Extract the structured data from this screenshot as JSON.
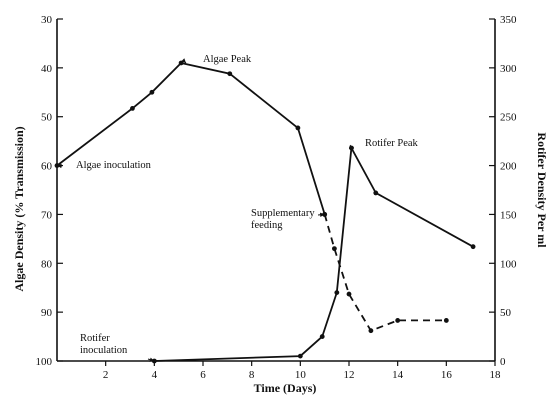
{
  "chart_data": {
    "type": "line",
    "xlabel": "Time (Days)",
    "ylabel_left": "Algae Density (% Transmission)",
    "ylabel_right": "Rotifer Density Per ml",
    "xlim": [
      0,
      18
    ],
    "ylim_left": [
      30,
      100
    ],
    "ylim_left_inverted": true,
    "ylim_right": [
      0,
      350
    ],
    "x_ticks": [
      2,
      4,
      6,
      8,
      10,
      12,
      14,
      16,
      18
    ],
    "y_left_ticks": [
      30,
      40,
      50,
      60,
      70,
      80,
      90,
      100
    ],
    "y_right_ticks": [
      0,
      50,
      100,
      150,
      200,
      250,
      300,
      350
    ],
    "grid": false,
    "legend": "none",
    "series": [
      {
        "axis": "left",
        "style": "solid",
        "points": [
          [
            0,
            60
          ],
          [
            3.1,
            48.3
          ],
          [
            3.9,
            45
          ],
          [
            5.1,
            39
          ],
          [
            7.1,
            41.2
          ],
          [
            9.9,
            52.3
          ],
          [
            11,
            70
          ]
        ]
      },
      {
        "axis": "left",
        "style": "dashed",
        "points": [
          [
            11,
            70
          ],
          [
            11.4,
            77
          ],
          [
            12,
            86.3
          ],
          [
            12.9,
            93.8
          ],
          [
            14,
            91.7
          ],
          [
            16,
            91.7
          ]
        ]
      },
      {
        "axis": "right",
        "style": "solid",
        "points": [
          [
            4,
            0
          ],
          [
            10,
            5
          ],
          [
            10.9,
            25
          ],
          [
            11.5,
            70
          ],
          [
            12.1,
            218
          ],
          [
            13.1,
            172
          ],
          [
            17.1,
            117
          ]
        ]
      }
    ],
    "annotations": [
      {
        "lines": [
          "Algae inoculation"
        ],
        "x": 0,
        "y": 60,
        "axis": "left"
      },
      {
        "lines": [
          "Algae Peak"
        ],
        "x": 5.3,
        "y": 39,
        "axis": "left"
      },
      {
        "lines": [
          "Rotifer Peak"
        ],
        "x": 12.2,
        "y": 218,
        "axis": "right"
      },
      {
        "lines": [
          "Supplementary",
          "feeding"
        ],
        "x": 11,
        "y": 70,
        "axis": "left"
      },
      {
        "lines": [
          "Rotifer",
          "inoculation"
        ],
        "x": 4,
        "y": 0,
        "axis": "right"
      }
    ]
  }
}
